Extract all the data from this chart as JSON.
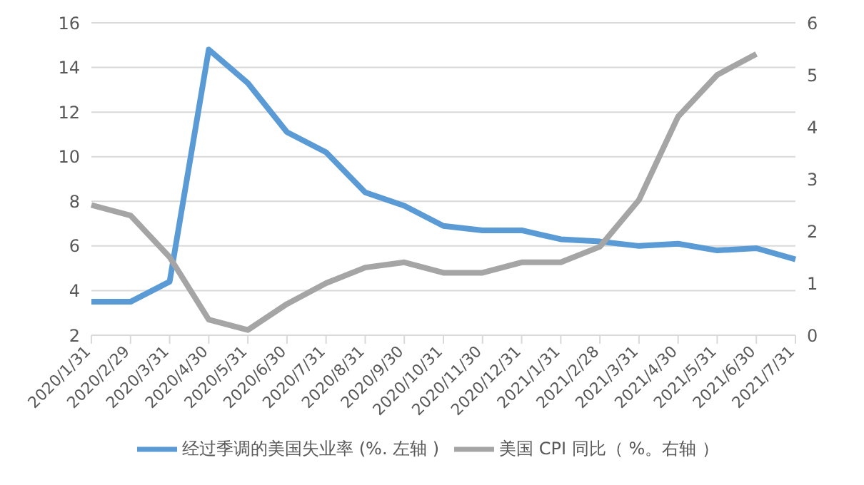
{
  "chart_data": {
    "type": "line",
    "categories": [
      "2020/1/31",
      "2020/2/29",
      "2020/3/31",
      "2020/4/30",
      "2020/5/31",
      "2020/6/30",
      "2020/7/31",
      "2020/8/31",
      "2020/9/30",
      "2020/10/31",
      "2020/11/30",
      "2020/12/31",
      "2021/1/31",
      "2021/2/28",
      "2021/3/31",
      "2021/4/30",
      "2021/5/31",
      "2021/6/30",
      "2021/7/31"
    ],
    "series": [
      {
        "name": "经过季调的美国失业率 (%. 左轴 )",
        "color": "#5b9bd5",
        "values": [
          3.5,
          3.5,
          4.4,
          14.8,
          13.3,
          11.1,
          10.2,
          8.4,
          7.8,
          6.9,
          6.7,
          6.7,
          6.3,
          6.2,
          6.0,
          6.1,
          5.8,
          5.9,
          5.4
        ]
      },
      {
        "name": "美国 CPI 同比（ %。右轴 ）",
        "color": "#a5a5a5",
        "axis": "y2",
        "values": [
          2.5,
          2.3,
          1.5,
          0.3,
          0.1,
          0.6,
          1.0,
          1.3,
          1.4,
          1.2,
          1.2,
          1.4,
          1.4,
          1.7,
          2.6,
          4.2,
          5.0,
          5.4,
          null
        ]
      }
    ],
    "ylim": [
      2,
      16
    ],
    "yticks": [
      2,
      4,
      6,
      8,
      10,
      12,
      14,
      16
    ],
    "y2lim": [
      0,
      6
    ],
    "y2ticks": [
      0,
      1,
      2,
      3,
      4,
      5,
      6
    ],
    "grid": "y",
    "legend": "bottom",
    "marker": "none",
    "line_style": "solid"
  }
}
